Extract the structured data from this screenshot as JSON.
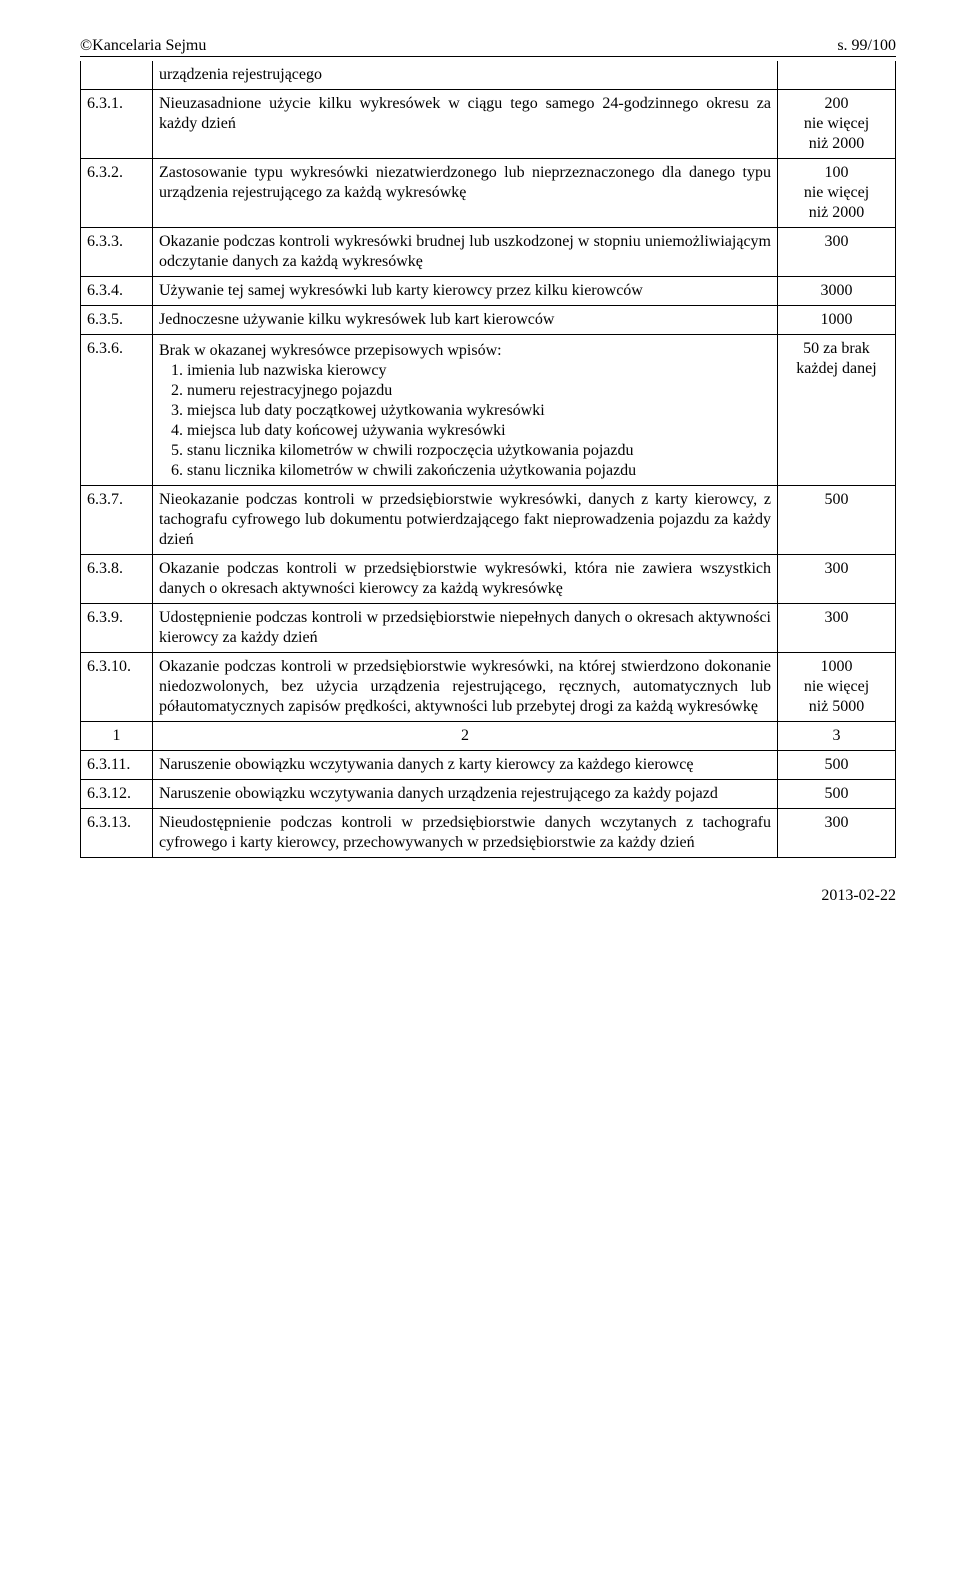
{
  "header": {
    "left": "©Kancelaria Sejmu",
    "right": "s. 99/100"
  },
  "footer": {
    "date": "2013-02-22"
  },
  "rows": [
    {
      "num": "",
      "desc_plain": "urządzenia rejestrującego",
      "val": "",
      "no_val_border": true
    },
    {
      "num": "6.3.1.",
      "desc_plain": "Nieuzasadnione użycie kilku wykresówek w ciągu tego samego 24-godzinnego okresu za każdy dzień",
      "val": "200\nnie więcej\nniż 2000"
    },
    {
      "num": "6.3.2.",
      "desc_plain": "Zastosowanie typu wykresówki niezatwierdzonego lub nieprzeznaczonego dla danego typu urządzenia rejestrującego za każdą wykresówkę",
      "val": "100\nnie więcej\nniż 2000"
    },
    {
      "num": "6.3.3.",
      "desc_plain": "Okazanie podczas kontroli wykresówki brudnej lub uszkodzonej w stopniu uniemożliwiającym odczytanie danych za każdą wykresówkę",
      "val": "300"
    },
    {
      "num": "6.3.4.",
      "desc_plain": "Używanie tej samej wykresówki lub karty kierowcy przez kilku kierowców",
      "val": "3000"
    },
    {
      "num": "6.3.5.",
      "desc_plain": "Jednoczesne używanie kilku wykresówek lub kart kierowców",
      "val": "1000"
    },
    {
      "num": "6.3.6.",
      "desc_lines": [
        "Brak w okazanej wykresówce przepisowych wpisów:",
        "1. imienia lub nazwiska kierowcy",
        "2. numeru rejestracyjnego pojazdu",
        "3. miejsca lub daty początkowej użytkowania wykresówki",
        "4. miejsca lub daty końcowej używania wykresówki",
        "5. stanu licznika kilometrów w chwili rozpoczęcia użytkowania pojazdu",
        "6. stanu licznika kilometrów w chwili zakończenia użytkowania pojazdu"
      ],
      "val": "50 za brak\nkażdej danej"
    },
    {
      "num": "6.3.7.",
      "desc_plain": "Nieokazanie podczas kontroli w przedsiębiorstwie wykresówki, danych z karty kierowcy, z tachografu cyfrowego lub dokumentu potwierdzającego fakt nieprowadzenia pojazdu za każdy dzień",
      "val": "500"
    },
    {
      "num": "6.3.8.",
      "desc_plain": "Okazanie podczas kontroli w przedsiębiorstwie wykresówki, która nie zawiera wszystkich danych o okresach aktywności kierowcy za każdą wykresówkę",
      "val": "300"
    },
    {
      "num": "6.3.9.",
      "desc_plain": "Udostępnienie podczas kontroli w przedsiębiorstwie niepełnych danych o okresach aktywności kierowcy za każdy dzień",
      "val": "300"
    },
    {
      "num": "6.3.10.",
      "desc_plain": "Okazanie podczas kontroli w przedsiębiorstwie wykresówki, na której stwierdzono dokonanie niedozwolonych, bez użycia urządzenia rejestrującego, ręcznych, automatycznych lub półautomatycznych zapisów prędkości, aktywności lub przebytej drogi za każdą wykresówkę",
      "val": "1000\nnie więcej\nniż 5000"
    },
    {
      "num": "1",
      "desc_plain": "2",
      "val": "3",
      "is_header_row": true
    },
    {
      "num": "6.3.11.",
      "desc_plain": "Naruszenie obowiązku wczytywania danych z karty kierowcy za każdego kierowcę",
      "val": "500"
    },
    {
      "num": "6.3.12.",
      "desc_plain": "Naruszenie obowiązku wczytywania danych urządzenia rejestrującego za każdy pojazd",
      "val": "500"
    },
    {
      "num": "6.3.13.",
      "desc_plain": "Nieudostępnienie podczas kontroli w przedsiębiorstwie danych wczytanych z tachografu cyfrowego i karty kierowcy, przechowywanych w przedsiębiorstwie za każdy dzień",
      "val": "300"
    }
  ]
}
